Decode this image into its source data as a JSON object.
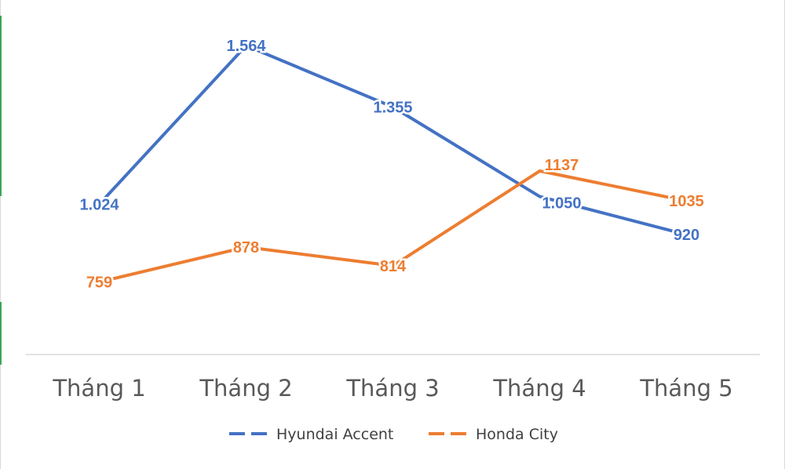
{
  "chart_data": {
    "type": "line",
    "title": "",
    "xlabel": "",
    "ylabel": "",
    "categories": [
      "Tháng 1",
      "Tháng 2",
      "Tháng 3",
      "Tháng 4",
      "Tháng 5"
    ],
    "ylim": [
      0,
      2000
    ],
    "grid": false,
    "legend": "bottom",
    "series": [
      {
        "name": "Hyundai Accent",
        "color": "#4472c4",
        "values": [
          1024,
          1564,
          1355,
          1050,
          920
        ],
        "labels": [
          "1.024",
          "1.564",
          "1.355",
          "1.050",
          "920"
        ]
      },
      {
        "name": "Honda City",
        "color": "#ed7d31",
        "values": [
          759,
          878,
          814,
          1137,
          1035
        ],
        "labels": [
          "759",
          "878",
          "814",
          "1137",
          "1035"
        ]
      }
    ]
  }
}
